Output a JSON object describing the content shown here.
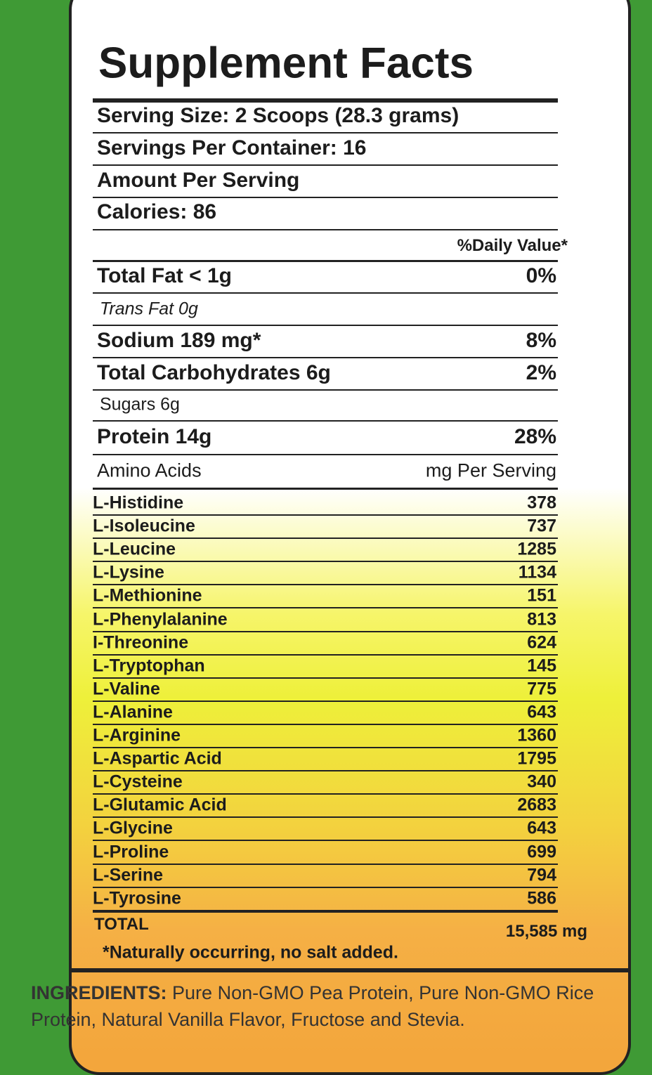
{
  "title": "Supplement Facts",
  "serving_info": [
    "Serving Size: 2 Scoops (28.3 grams)",
    "Servings Per Container: 16",
    "Amount Per Serving",
    "Calories: 86"
  ],
  "daily_value_header": "%Daily Value*",
  "nutrients": [
    {
      "label": "Total Fat < 1g",
      "dv": "0%"
    },
    {
      "label": "Trans Fat 0g"
    },
    {
      "label": "Sodium 189 mg*",
      "dv": "8%"
    },
    {
      "label": "Total Carbohydrates 6g",
      "dv": "2%"
    },
    {
      "label": "Sugars 6g"
    },
    {
      "label": "Protein 14g",
      "dv": "28%"
    }
  ],
  "amino_header": {
    "label": "Amino Acids",
    "unit": "mg Per Serving"
  },
  "amino_acids": [
    {
      "name": "L-Histidine",
      "mg": 378
    },
    {
      "name": "L-Isoleucine",
      "mg": 737
    },
    {
      "name": "L-Leucine",
      "mg": 1285
    },
    {
      "name": "L-Lysine",
      "mg": 1134
    },
    {
      "name": "L-Methionine",
      "mg": 151
    },
    {
      "name": "L-Phenylalanine",
      "mg": 813
    },
    {
      "name": "I-Threonine",
      "mg": 624
    },
    {
      "name": "L-Tryptophan",
      "mg": 145
    },
    {
      "name": "L-Valine",
      "mg": 775
    },
    {
      "name": "L-Alanine",
      "mg": 643
    },
    {
      "name": "L-Arginine",
      "mg": 1360
    },
    {
      "name": "L-Aspartic Acid",
      "mg": 1795
    },
    {
      "name": "L-Cysteine",
      "mg": 340
    },
    {
      "name": "L-Glutamic Acid",
      "mg": 2683
    },
    {
      "name": "L-Glycine",
      "mg": 643
    },
    {
      "name": "L-Proline",
      "mg": 699
    },
    {
      "name": "L-Serine",
      "mg": 794
    },
    {
      "name": "L-Tyrosine",
      "mg": 586
    }
  ],
  "total": {
    "label": "TOTAL",
    "value": "15,585 mg"
  },
  "footnote": "*Naturally occurring, no salt added.",
  "ingredients": {
    "label": "INGREDIENTS:",
    "text": "Pure Non-GMO Pea Protein, Pure Non-GMO Rice Protein, Natural Vanilla Flavor, Fructose and Stevia."
  }
}
